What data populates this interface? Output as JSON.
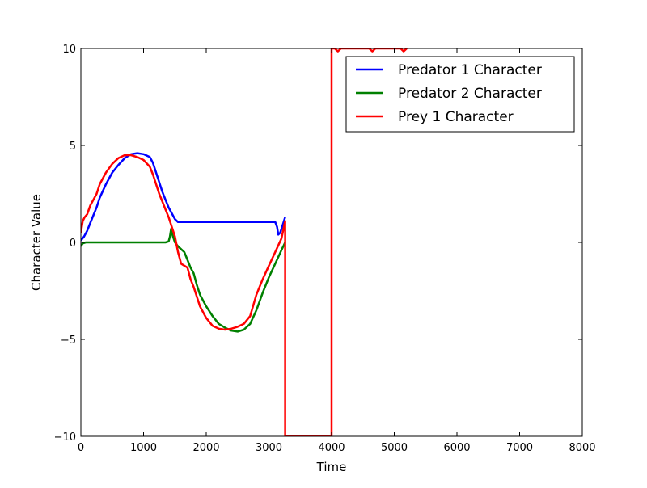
{
  "chart_data": {
    "type": "line",
    "title": "",
    "xlabel": "Time",
    "ylabel": "Character Value",
    "xlim": [
      0,
      8000
    ],
    "ylim": [
      -10,
      10
    ],
    "xticks": [
      0,
      1000,
      2000,
      3000,
      4000,
      5000,
      6000,
      7000,
      8000
    ],
    "xtick_labels": [
      "0",
      "1000",
      "2000",
      "3000",
      "4000",
      "5000",
      "6000",
      "7000",
      "8000"
    ],
    "yticks": [
      10,
      5,
      0,
      -5,
      -10
    ],
    "ytick_labels": [
      "10",
      "5",
      "0",
      "−5",
      "−10"
    ],
    "grid": false,
    "legend_position": "top-right",
    "series": [
      {
        "name": "Predator 1 Character",
        "color": "#0000ff",
        "points": [
          [
            0,
            0.1
          ],
          [
            50,
            0.3
          ],
          [
            100,
            0.6
          ],
          [
            150,
            1.0
          ],
          [
            200,
            1.4
          ],
          [
            250,
            1.8
          ],
          [
            300,
            2.3
          ],
          [
            400,
            3.0
          ],
          [
            500,
            3.6
          ],
          [
            600,
            4.0
          ],
          [
            700,
            4.35
          ],
          [
            800,
            4.55
          ],
          [
            900,
            4.6
          ],
          [
            1000,
            4.55
          ],
          [
            1100,
            4.4
          ],
          [
            1150,
            4.1
          ],
          [
            1200,
            3.6
          ],
          [
            1250,
            3.1
          ],
          [
            1300,
            2.6
          ],
          [
            1350,
            2.2
          ],
          [
            1400,
            1.8
          ],
          [
            1450,
            1.5
          ],
          [
            1500,
            1.2
          ],
          [
            1550,
            1.05
          ],
          [
            1600,
            1.05
          ],
          [
            2000,
            1.05
          ],
          [
            2500,
            1.05
          ],
          [
            3000,
            1.05
          ],
          [
            3100,
            1.05
          ],
          [
            3130,
            0.8
          ],
          [
            3150,
            0.4
          ],
          [
            3180,
            0.5
          ],
          [
            3220,
            0.9
          ],
          [
            3260,
            1.3
          ]
        ]
      },
      {
        "name": "Predator 2 Character",
        "color": "#008000",
        "points": [
          [
            0,
            -0.2
          ],
          [
            30,
            -0.05
          ],
          [
            80,
            0.0
          ],
          [
            200,
            0.0
          ],
          [
            600,
            0.0
          ],
          [
            1000,
            0.0
          ],
          [
            1350,
            0.0
          ],
          [
            1400,
            0.05
          ],
          [
            1420,
            0.3
          ],
          [
            1440,
            0.7
          ],
          [
            1460,
            0.4
          ],
          [
            1500,
            0.0
          ],
          [
            1550,
            -0.2
          ],
          [
            1600,
            -0.35
          ],
          [
            1650,
            -0.5
          ],
          [
            1700,
            -0.9
          ],
          [
            1750,
            -1.3
          ],
          [
            1800,
            -1.6
          ],
          [
            1850,
            -2.2
          ],
          [
            1900,
            -2.7
          ],
          [
            2000,
            -3.3
          ],
          [
            2100,
            -3.8
          ],
          [
            2200,
            -4.2
          ],
          [
            2300,
            -4.4
          ],
          [
            2400,
            -4.55
          ],
          [
            2500,
            -4.6
          ],
          [
            2600,
            -4.5
          ],
          [
            2700,
            -4.2
          ],
          [
            2800,
            -3.5
          ],
          [
            2900,
            -2.6
          ],
          [
            3000,
            -1.8
          ],
          [
            3100,
            -1.1
          ],
          [
            3200,
            -0.4
          ],
          [
            3260,
            0.0
          ]
        ]
      },
      {
        "name": "Prey 1 Character",
        "color": "#ff0000",
        "points": [
          [
            0,
            0.5
          ],
          [
            30,
            1.1
          ],
          [
            60,
            1.3
          ],
          [
            100,
            1.45
          ],
          [
            150,
            1.9
          ],
          [
            200,
            2.2
          ],
          [
            250,
            2.5
          ],
          [
            300,
            3.0
          ],
          [
            400,
            3.6
          ],
          [
            500,
            4.05
          ],
          [
            600,
            4.35
          ],
          [
            700,
            4.5
          ],
          [
            800,
            4.5
          ],
          [
            900,
            4.4
          ],
          [
            1000,
            4.25
          ],
          [
            1100,
            3.9
          ],
          [
            1150,
            3.5
          ],
          [
            1200,
            3.0
          ],
          [
            1250,
            2.5
          ],
          [
            1300,
            2.1
          ],
          [
            1350,
            1.7
          ],
          [
            1400,
            1.3
          ],
          [
            1450,
            0.8
          ],
          [
            1500,
            0.3
          ],
          [
            1550,
            -0.5
          ],
          [
            1600,
            -1.1
          ],
          [
            1650,
            -1.2
          ],
          [
            1700,
            -1.3
          ],
          [
            1750,
            -1.9
          ],
          [
            1800,
            -2.3
          ],
          [
            1850,
            -2.8
          ],
          [
            1900,
            -3.3
          ],
          [
            2000,
            -3.9
          ],
          [
            2100,
            -4.3
          ],
          [
            2200,
            -4.45
          ],
          [
            2300,
            -4.5
          ],
          [
            2400,
            -4.45
          ],
          [
            2500,
            -4.35
          ],
          [
            2600,
            -4.2
          ],
          [
            2700,
            -3.8
          ],
          [
            2800,
            -2.7
          ],
          [
            2900,
            -1.9
          ],
          [
            3000,
            -1.2
          ],
          [
            3100,
            -0.5
          ],
          [
            3200,
            0.2
          ],
          [
            3260,
            1.1
          ],
          [
            3260,
            -10
          ],
          [
            4000,
            -10
          ],
          [
            4000,
            10
          ],
          [
            4050,
            10
          ],
          [
            4100,
            9.85
          ],
          [
            4150,
            10
          ],
          [
            4600,
            10
          ],
          [
            4650,
            9.85
          ],
          [
            4700,
            10
          ],
          [
            5100,
            10
          ],
          [
            5150,
            9.85
          ],
          [
            5200,
            10
          ]
        ]
      }
    ]
  }
}
